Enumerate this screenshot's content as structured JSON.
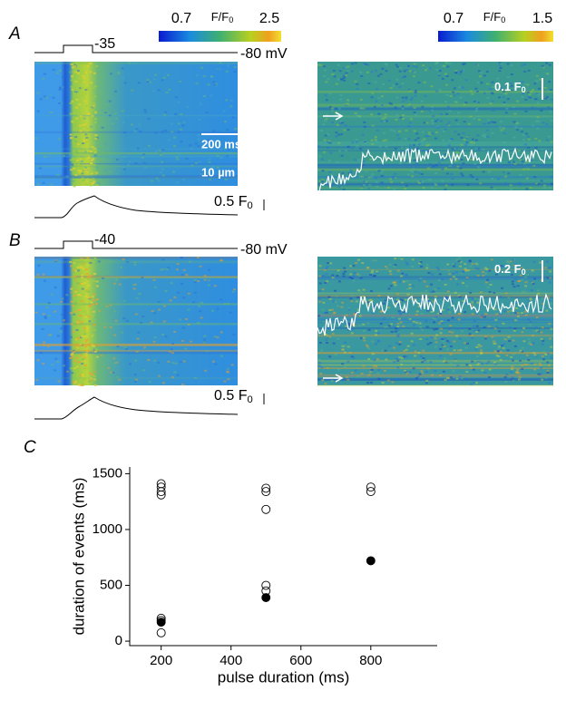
{
  "panels": {
    "A": {
      "label": "A",
      "colorbar": {
        "min": "0.7",
        "max": "2.5",
        "title": "F/F",
        "title_sub": "0"
      },
      "protocol": {
        "step": "-35",
        "hold": "-80 mV"
      },
      "scale": {
        "time": "200 ms",
        "space": "10 µm",
        "amplitude": "0.5 F",
        "amplitude_sub": "0"
      },
      "zoom": {
        "colorbar": {
          "min": "0.7",
          "max": "1.5",
          "title": "F/F",
          "title_sub": "0"
        },
        "scale": "0.1 F",
        "scale_sub": "0"
      }
    },
    "B": {
      "label": "B",
      "protocol": {
        "step": "-40",
        "hold": "-80 mV"
      },
      "scale": {
        "amplitude": "0.5 F",
        "amplitude_sub": "0"
      },
      "zoom": {
        "scale": "0.2 F",
        "scale_sub": "0"
      }
    },
    "C": {
      "label": "C"
    }
  },
  "chart_data": {
    "type": "scatter",
    "xlabel": "pulse duration (ms)",
    "ylabel": "duration of events (ms)",
    "xlim": [
      110,
      990
    ],
    "ylim": [
      -40,
      1560
    ],
    "xticks": [
      200,
      400,
      600,
      800
    ],
    "yticks": [
      0,
      500,
      1000,
      1500
    ],
    "series": [
      {
        "marker": "open",
        "color": "#000000",
        "x": [
          200,
          200,
          200,
          200,
          200,
          200,
          200,
          500,
          500,
          500,
          500,
          500,
          800,
          800
        ],
        "values": [
          1410,
          1380,
          1340,
          1310,
          205,
          185,
          75,
          1370,
          1340,
          1180,
          500,
          450,
          1380,
          1340
        ]
      },
      {
        "marker": "filled",
        "color": "#000000",
        "x": [
          200,
          500,
          800
        ],
        "values": [
          170,
          390,
          720
        ]
      }
    ]
  }
}
